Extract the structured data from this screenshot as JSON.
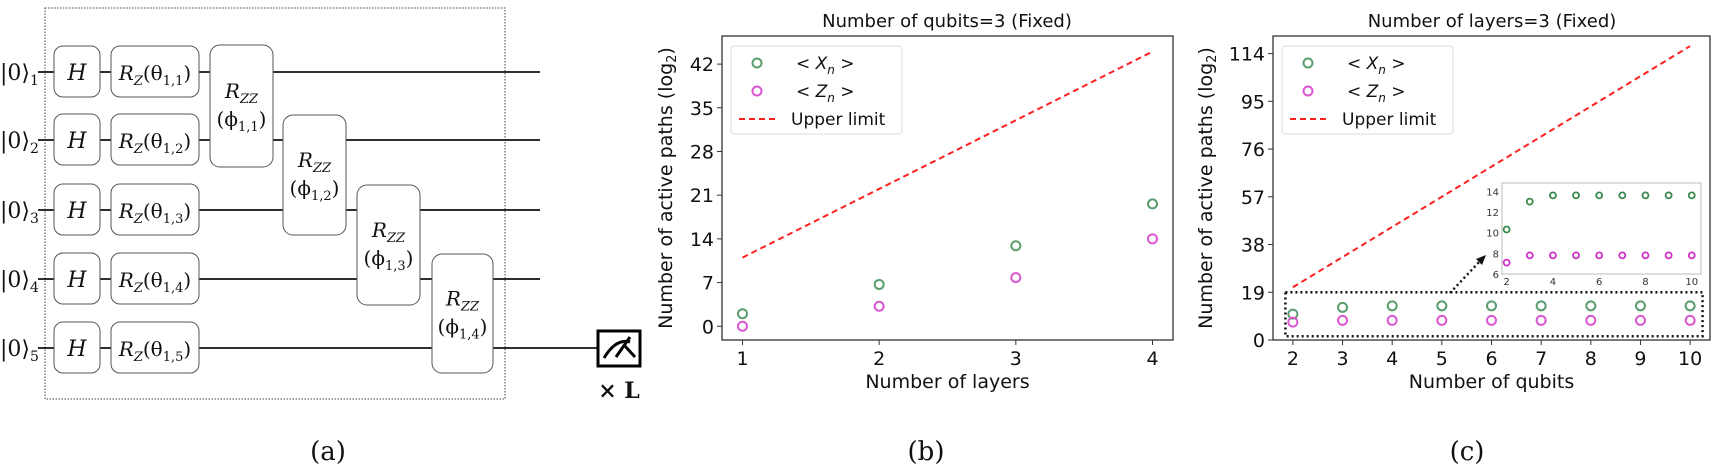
{
  "circuit": {
    "kets": [
      "|0⟩",
      "|0⟩",
      "|0⟩",
      "|0⟩",
      "|0⟩"
    ],
    "ket_subscripts": [
      "1",
      "2",
      "3",
      "4",
      "5"
    ],
    "h_label": "H",
    "rz_labels": [
      "R_Z(θ_1,1)",
      "R_Z(θ_1,2)",
      "R_Z(θ_1,3)",
      "R_Z(θ_1,4)",
      "R_Z(θ_1,5)"
    ],
    "rz_main": "R",
    "rz_sub": "Z",
    "rz_args": [
      "(θ",
      "(θ",
      "(θ",
      "(θ",
      "(θ"
    ],
    "rz_arg_subs": [
      "1,1",
      "1,2",
      "1,3",
      "1,4",
      "1,5"
    ],
    "rzz_main": "R",
    "rzz_sub": "ZZ",
    "rzz_args": [
      "(ϕ",
      "(ϕ",
      "(ϕ",
      "(ϕ"
    ],
    "rzz_arg_subs": [
      "1,1",
      "1,2",
      "1,3",
      "1,4"
    ],
    "close_paren": ")",
    "repeat_label": "× L",
    "measure_icon": "measurement-meter-icon"
  },
  "captions": [
    "(a)",
    "(b)",
    "(c)"
  ],
  "colors": {
    "x_series": "#5a9e6f",
    "z_series": "#d957d0",
    "upper": "#ff2020"
  },
  "chart_data": [
    {
      "type": "scatter",
      "title": "Number of qubits=3 (Fixed)",
      "xlabel": "Number of layers",
      "ylabel": "Number of active paths (log",
      "ylabel_sub": "2",
      "ylabel_close": ")",
      "xlim": [
        0.85,
        4.15
      ],
      "ylim": [
        -2.2,
        46.5
      ],
      "xticks": [
        1,
        2,
        3,
        4
      ],
      "yticks": [
        0,
        7,
        14,
        21,
        28,
        35,
        42
      ],
      "legend_position": "upper-left",
      "series": [
        {
          "name": "< X_n >",
          "legend": "< X",
          "legend_sub": "n",
          "legend_close": " >",
          "kind": "marker",
          "color": "#5a9e6f",
          "x": [
            1,
            2,
            3,
            4
          ],
          "y": [
            2.0,
            6.7,
            12.9,
            19.6
          ]
        },
        {
          "name": "< Z_n >",
          "legend": "< Z",
          "legend_sub": "n",
          "legend_close": " >",
          "kind": "marker",
          "color": "#d957d0",
          "x": [
            1,
            2,
            3,
            4
          ],
          "y": [
            0.0,
            3.2,
            7.8,
            14.0
          ]
        },
        {
          "name": "Upper limit",
          "legend": "Upper limit",
          "kind": "dashed",
          "color": "#ff2020",
          "x": [
            1,
            2,
            3,
            4
          ],
          "y": [
            11,
            22,
            33,
            44
          ]
        }
      ]
    },
    {
      "type": "scatter",
      "title": "Number of layers=3 (Fixed)",
      "xlabel": "Number of qubits",
      "ylabel": "Number of active paths (log",
      "ylabel_sub": "2",
      "ylabel_close": ")",
      "xlim": [
        1.6,
        10.4
      ],
      "ylim": [
        0,
        121
      ],
      "xticks": [
        2,
        3,
        4,
        5,
        6,
        7,
        8,
        9,
        10
      ],
      "yticks": [
        0,
        19,
        38,
        57,
        76,
        95,
        114
      ],
      "legend_position": "upper-left",
      "series": [
        {
          "name": "< X_n >",
          "legend": "< X",
          "legend_sub": "n",
          "legend_close": " >",
          "kind": "marker",
          "color": "#5a9e6f",
          "x": [
            2,
            3,
            4,
            5,
            6,
            7,
            8,
            9,
            10
          ],
          "y": [
            10.3,
            13.0,
            13.6,
            13.6,
            13.6,
            13.6,
            13.6,
            13.6,
            13.6
          ]
        },
        {
          "name": "< Z_n >",
          "legend": "< Z",
          "legend_sub": "n",
          "legend_close": " >",
          "kind": "marker",
          "color": "#d957d0",
          "x": [
            2,
            3,
            4,
            5,
            6,
            7,
            8,
            9,
            10
          ],
          "y": [
            7.1,
            7.8,
            7.8,
            7.8,
            7.8,
            7.8,
            7.8,
            7.8,
            7.8
          ]
        },
        {
          "name": "Upper limit",
          "legend": "Upper limit",
          "kind": "dashed",
          "color": "#ff2020",
          "x": [
            2,
            10
          ],
          "y": [
            21,
            117
          ]
        }
      ],
      "zoom_box": {
        "xrange": [
          1.85,
          10.25
        ],
        "yrange": [
          1.5,
          19
        ]
      },
      "inset": {
        "xlim": [
          1.8,
          10.4
        ],
        "ylim": [
          6,
          14.8
        ],
        "xticks": [
          2,
          4,
          6,
          8,
          10
        ],
        "yticks": [
          6,
          8,
          10,
          12,
          14
        ]
      }
    }
  ]
}
